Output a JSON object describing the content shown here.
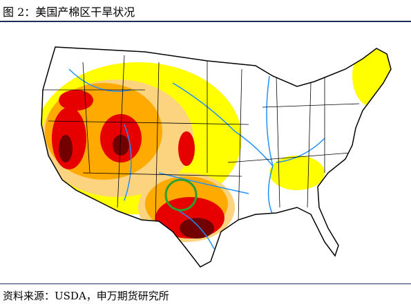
{
  "header": {
    "title": "图 2：美国产棉区干旱状况"
  },
  "footer": {
    "source": "资料来源：USDA，申万期货研究所"
  }
}
